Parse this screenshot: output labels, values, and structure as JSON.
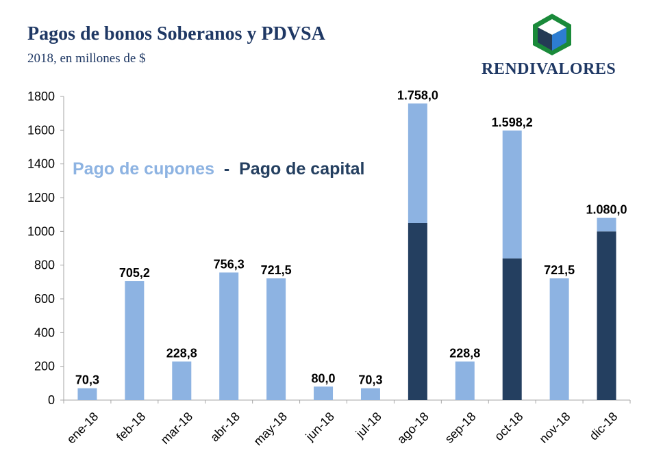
{
  "header": {
    "title": "Pagos de bonos Soberanos y PDVSA",
    "subtitle": "2018, en millones de $"
  },
  "logo": {
    "text": "RENDIVALORES",
    "icon": "cube-logo-icon",
    "colors": {
      "frame": "#1a8a3a",
      "front": "#2d7dd2",
      "side": "#243b55",
      "top": "#ffffff"
    }
  },
  "legend": {
    "coupon_label": "Pago de cupones",
    "separator": " - ",
    "capital_label": "Pago de capital"
  },
  "chart_data": {
    "type": "bar",
    "stacked": true,
    "categories": [
      "ene-18",
      "feb-18",
      "mar-18",
      "abr-18",
      "may-18",
      "jun-18",
      "jul-18",
      "ago-18",
      "sep-18",
      "oct-18",
      "nov-18",
      "dic-18"
    ],
    "series": [
      {
        "name": "Pago de capital",
        "color": "#243f60",
        "values": [
          0,
          0,
          0,
          0,
          0,
          0,
          0,
          1050,
          0,
          840,
          0,
          1000
        ]
      },
      {
        "name": "Pago de cupones",
        "color": "#8db3e2",
        "values": [
          70.3,
          705.2,
          228.8,
          756.3,
          721.5,
          80.0,
          70.3,
          708.0,
          228.8,
          758.2,
          721.5,
          80.0
        ]
      }
    ],
    "totals": [
      70.3,
      705.2,
      228.8,
      756.3,
      721.5,
      80.0,
      70.3,
      1758.0,
      228.8,
      1598.2,
      721.5,
      1080.0
    ],
    "total_labels": [
      "70,3",
      "705,2",
      "228,8",
      "756,3",
      "721,5",
      "80,0",
      "70,3",
      "1.758,0",
      "228,8",
      "1.598,2",
      "721,5",
      "1.080,0"
    ],
    "yticks": [
      0,
      200,
      400,
      600,
      800,
      1000,
      1200,
      1400,
      1600,
      1800
    ],
    "ylim": [
      0,
      1800
    ],
    "xlabel": "",
    "ylabel": "",
    "grid": false,
    "legend_position": "top-left"
  }
}
